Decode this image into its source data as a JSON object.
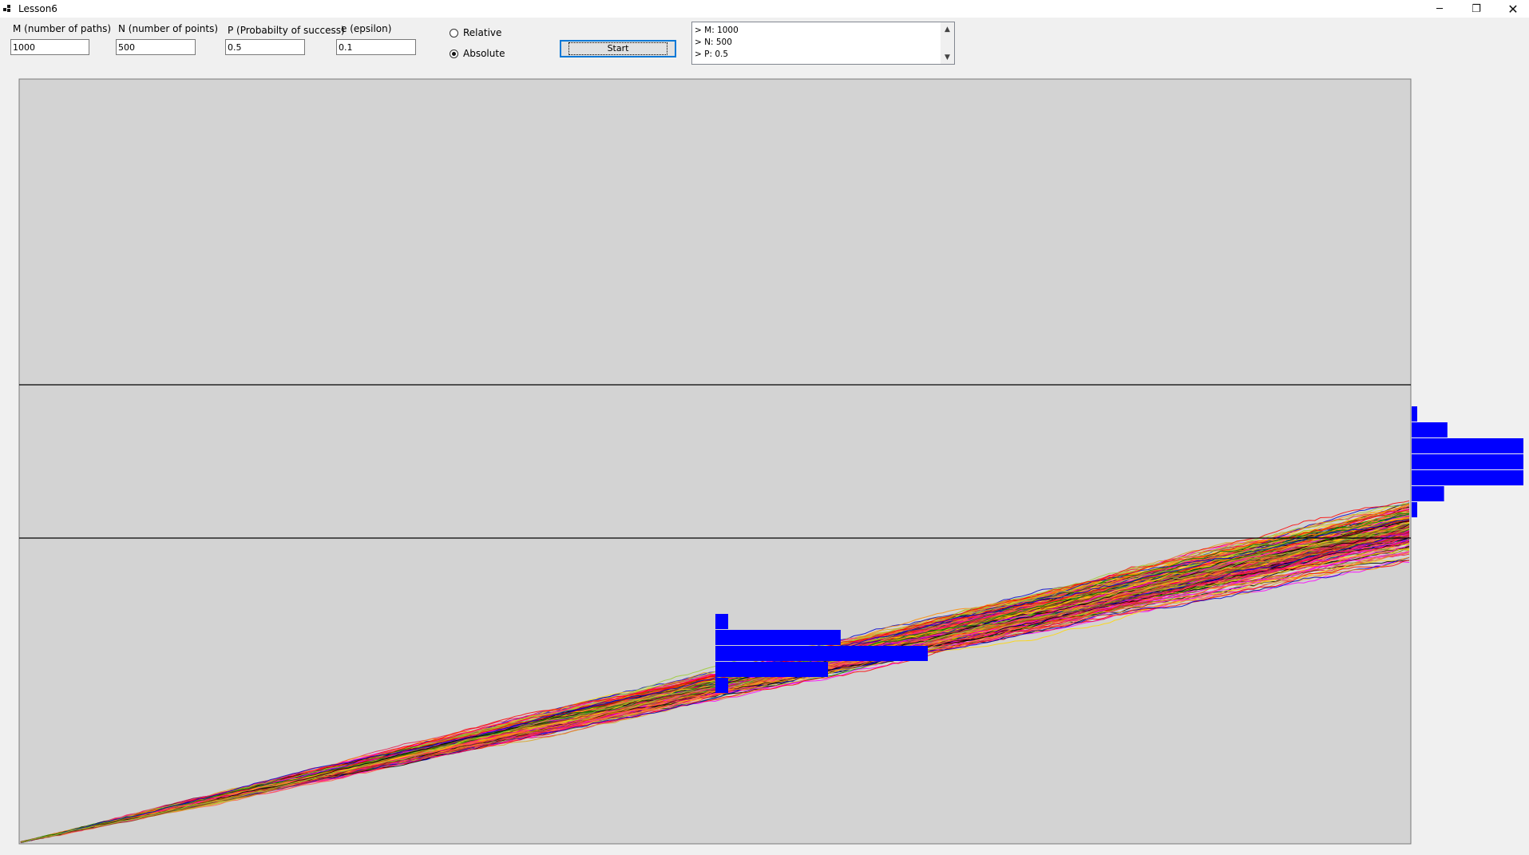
{
  "window": {
    "title": "Lesson6",
    "minimize_glyph": "─",
    "maximize_glyph": "❐",
    "close_glyph": "✕"
  },
  "form": {
    "m": {
      "label": "M (number of paths)",
      "value": "1000"
    },
    "n": {
      "label": "N (number of points)",
      "value": "500"
    },
    "p": {
      "label": "P (Probabilty of success)",
      "value": "0.5"
    },
    "e": {
      "label": "e (epsilon)",
      "value": "0.1"
    },
    "mode": {
      "options": [
        "Relative",
        "Absolute"
      ],
      "selected": "Absolute"
    },
    "start_label": "Start"
  },
  "log": {
    "lines": [
      "> M: 1000",
      "> N: 500",
      "> P: 0.5"
    ],
    "scroll_up": "▲",
    "scroll_down": "▼"
  },
  "chart_data": {
    "type": "line",
    "description_visible": "random walk paths with histograms at midpoint and end",
    "paths": 1000,
    "points": 500,
    "p": 0.5,
    "epsilon": 0.1,
    "band_lines": true,
    "histogram_color": "#0000ff",
    "background": "#d3d3d3",
    "mid_histogram": {
      "relative_counts": [
        0.06,
        0.59,
        1.0,
        0.53,
        0.06
      ]
    },
    "end_histogram": {
      "relative_counts": [
        0.05,
        0.32,
        1.0,
        1.0,
        1.0,
        0.29,
        0.05
      ]
    }
  }
}
